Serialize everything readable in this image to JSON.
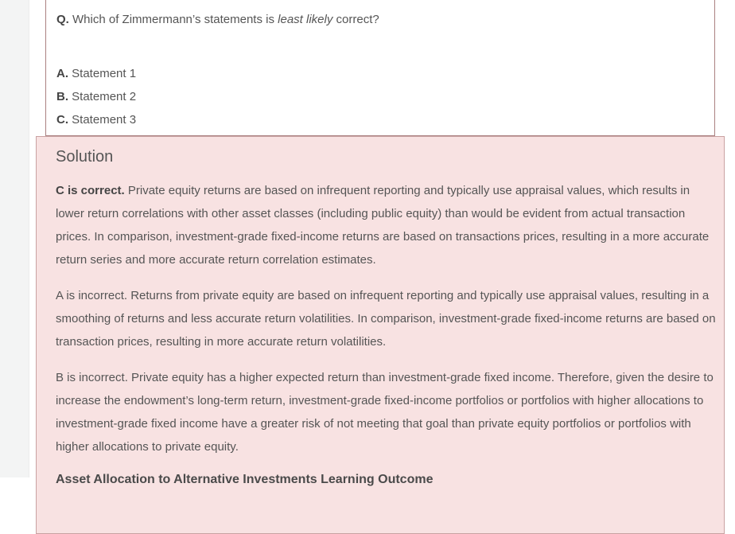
{
  "question": {
    "label": "Q.",
    "text_pre": "Which of Zimmermann’s statements is ",
    "text_italic": "least likely",
    "text_post": " correct?",
    "options": [
      {
        "letter": "A.",
        "text": "Statement 1"
      },
      {
        "letter": "B.",
        "text": "Statement 2"
      },
      {
        "letter": "C.",
        "text": "Statement 3"
      }
    ]
  },
  "solution": {
    "heading": "Solution",
    "paragraphs": [
      {
        "bold": "C is correct.",
        "text": " Private equity returns are based on infrequent reporting and typically use appraisal values, which results in lower return correlations with other asset classes (including public equity) than would be evident from actual transaction prices. In comparison, investment-grade fixed-income returns are based on transactions prices, resulting in a more accurate return series and more accurate return correlation estimates."
      },
      {
        "bold": "",
        "text": "A is incorrect. Returns from private equity are based on infrequent reporting and typically use appraisal values, resulting in a smoothing of returns and less accurate return volatilities. In comparison, investment-grade fixed-income returns are based on transaction prices, resulting in more accurate return volatilities."
      },
      {
        "bold": "",
        "text": "B is incorrect. Private equity has a higher expected return than investment-grade fixed income. Therefore, given the desire to increase the endowment’s long-term return, investment-grade fixed-income portfolios or portfolios with higher allocations to investment-grade fixed income have a greater risk of not meeting that goal than private equity portfolios or portfolios with higher allocations to private equity."
      }
    ],
    "footer_heading": "Asset Allocation to Alternative Investments Learning Outcome"
  },
  "colors": {
    "solution_bg": "#f8e2e2",
    "solution_border": "#c9a2a2",
    "question_border": "#ab8181",
    "sidebar_bg": "#f3f4f4",
    "body_text": "#555555",
    "bold_text": "#444444"
  }
}
